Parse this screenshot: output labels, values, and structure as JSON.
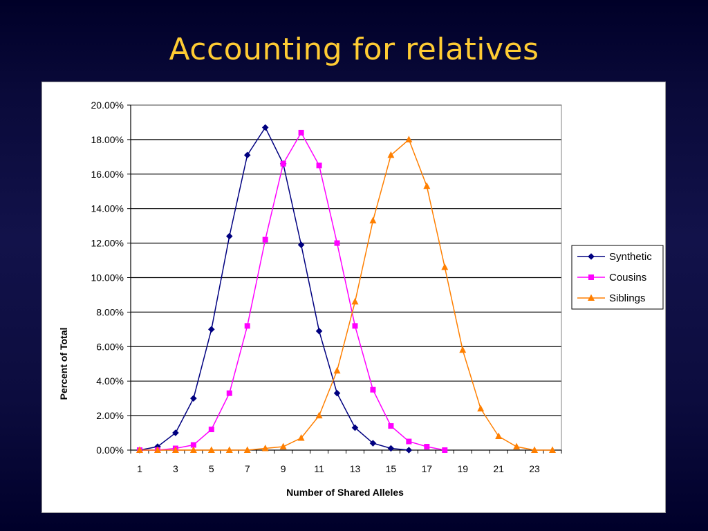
{
  "slide": {
    "title": "Accounting for relatives"
  },
  "colors": {
    "title": "#ffcc33",
    "synthetic": "#000080",
    "cousins": "#ff00ff",
    "siblings": "#ff7f00"
  },
  "chart_data": {
    "type": "line",
    "xlabel": "Number of Shared Alleles",
    "ylabel": "Percent of Total",
    "x": [
      1,
      2,
      3,
      4,
      5,
      6,
      7,
      8,
      9,
      10,
      11,
      12,
      13,
      14,
      15,
      16,
      17,
      18,
      19,
      20,
      21,
      22,
      23,
      24
    ],
    "x_tick_labels": [
      "1",
      "3",
      "5",
      "7",
      "9",
      "11",
      "13",
      "15",
      "17",
      "19",
      "21",
      "23"
    ],
    "ylim": [
      0,
      20
    ],
    "y_tick_labels": [
      "0.00%",
      "2.00%",
      "4.00%",
      "6.00%",
      "8.00%",
      "10.00%",
      "12.00%",
      "14.00%",
      "16.00%",
      "18.00%",
      "20.00%"
    ],
    "grid": "horizontal",
    "legend_position": "right",
    "series": [
      {
        "name": "Synthetic",
        "marker": "diamond",
        "color": "#000080",
        "x": [
          1,
          2,
          3,
          4,
          5,
          6,
          7,
          8,
          9,
          10,
          11,
          12,
          13,
          14,
          15,
          16
        ],
        "values": [
          0.0,
          0.2,
          1.0,
          3.0,
          7.0,
          12.4,
          17.1,
          18.7,
          16.6,
          11.9,
          6.9,
          3.3,
          1.3,
          0.4,
          0.1,
          0.0
        ]
      },
      {
        "name": "Cousins",
        "marker": "square",
        "color": "#ff00ff",
        "x": [
          1,
          2,
          3,
          4,
          5,
          6,
          7,
          8,
          9,
          10,
          11,
          12,
          13,
          14,
          15,
          16,
          17,
          18
        ],
        "values": [
          0.0,
          0.0,
          0.1,
          0.3,
          1.2,
          3.3,
          7.2,
          12.2,
          16.6,
          18.4,
          16.5,
          12.0,
          7.2,
          3.5,
          1.4,
          0.5,
          0.2,
          0.0
        ]
      },
      {
        "name": "Siblings",
        "marker": "triangle",
        "color": "#ff7f00",
        "x": [
          1,
          2,
          3,
          4,
          5,
          6,
          7,
          8,
          9,
          10,
          11,
          12,
          13,
          14,
          15,
          16,
          17,
          18,
          19,
          20,
          21,
          22,
          23,
          24
        ],
        "values": [
          0.0,
          0.0,
          0.0,
          0.0,
          0.0,
          0.0,
          0.0,
          0.1,
          0.2,
          0.7,
          2.0,
          4.6,
          8.6,
          13.3,
          17.1,
          18.0,
          15.3,
          10.6,
          5.8,
          2.4,
          0.8,
          0.2,
          0.0,
          0.0
        ]
      }
    ]
  }
}
